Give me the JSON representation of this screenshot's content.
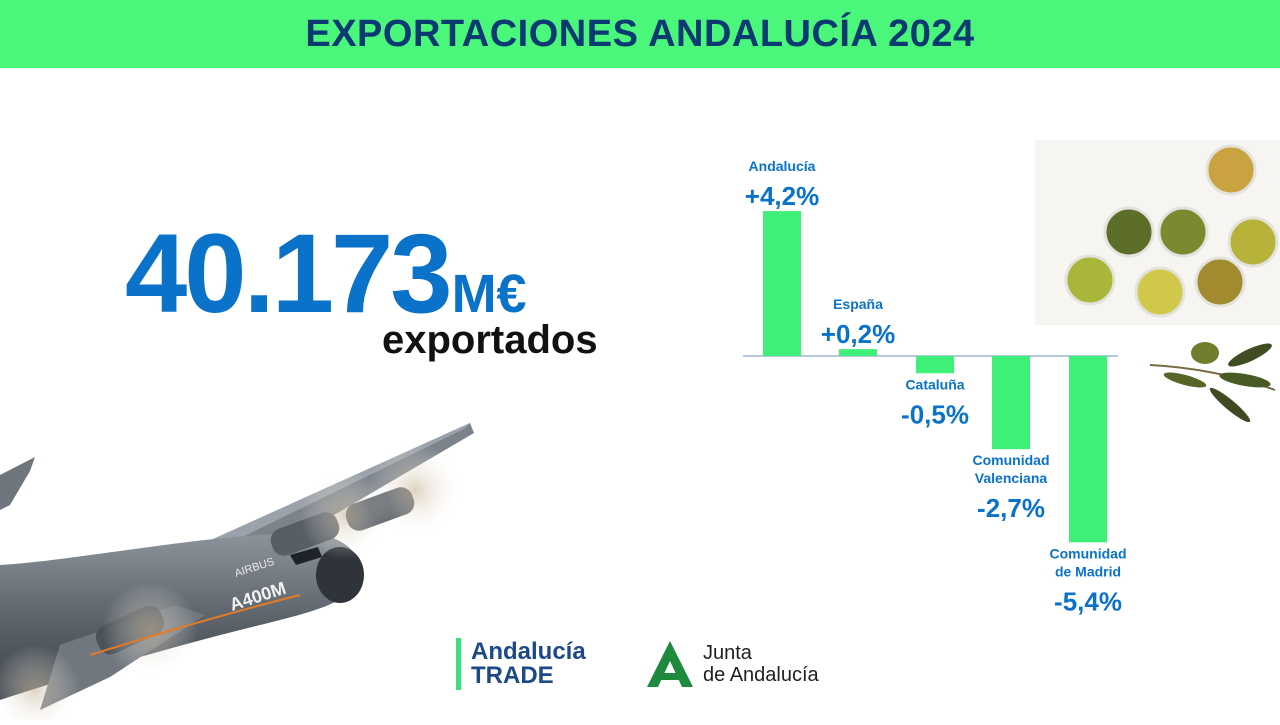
{
  "header": {
    "title": "EXPORTACIONES ANDALUCÍA 2024"
  },
  "headline": {
    "value": "40.173",
    "unit": "M€",
    "caption": "exportados"
  },
  "colors": {
    "title_bg": "#4af77a",
    "title_text": "#0b3a72",
    "accent_blue": "#0a72c8",
    "bar_green": "#3ef077"
  },
  "chart_data": {
    "type": "bar",
    "categories": [
      "Andalucía",
      "España",
      "Cataluña",
      "Comunidad Valenciana",
      "Comunidad de Madrid"
    ],
    "category_lines": [
      [
        "Andalucía"
      ],
      [
        "España"
      ],
      [
        "Cataluña"
      ],
      [
        "Comunidad",
        "Valenciana"
      ],
      [
        "Comunidad",
        "de Madrid"
      ]
    ],
    "values": [
      4.2,
      0.2,
      -0.5,
      -2.7,
      -5.4
    ],
    "value_labels": [
      "+4,2%",
      "+0,2%",
      "-0,5%",
      "-2,7%",
      "-5,4%"
    ],
    "unit": "%",
    "grid": false
  },
  "images": {
    "plane": "A400M",
    "plane_brand": "AIRBUS"
  },
  "logos": {
    "trade": {
      "line1": "Andalucía",
      "line2": "TRADE"
    },
    "junta": {
      "line1": "Junta",
      "line2": "de Andalucía"
    }
  }
}
